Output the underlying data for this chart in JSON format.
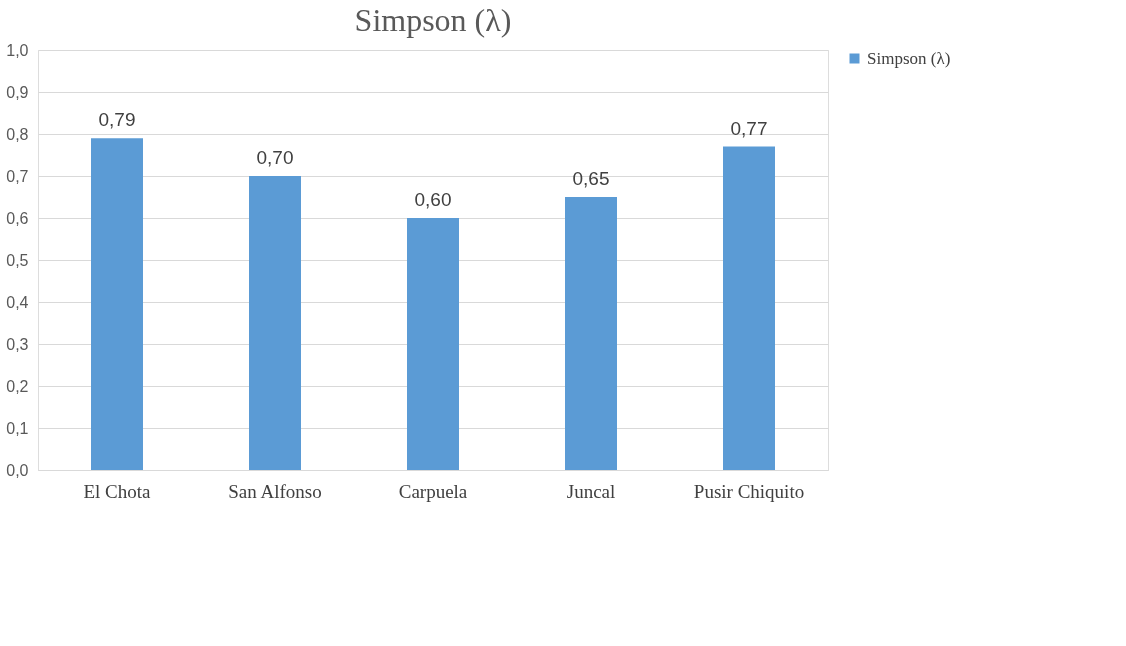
{
  "chart_data": {
    "type": "bar",
    "title": "Simpson (λ)",
    "categories": [
      "El Chota",
      "San Alfonso",
      "Carpuela",
      "Juncal",
      "Pusir Chiquito"
    ],
    "series": [
      {
        "name": "Simpson (λ)",
        "color": "#5b9bd5",
        "values": [
          0.79,
          0.7,
          0.6,
          0.65,
          0.77
        ],
        "value_labels": [
          "0,79",
          "0,70",
          "0,60",
          "0,65",
          "0,77"
        ]
      }
    ],
    "ylim": [
      0,
      1
    ],
    "yticks": [
      {
        "value": 0,
        "label": "0,0"
      },
      {
        "value": 0.1,
        "label": "0,1"
      },
      {
        "value": 0.2,
        "label": "0,2"
      },
      {
        "value": 0.3,
        "label": "0,3"
      },
      {
        "value": 0.4,
        "label": "0,4"
      },
      {
        "value": 0.5,
        "label": "0,5"
      },
      {
        "value": 0.6,
        "label": "0,6"
      },
      {
        "value": 0.7,
        "label": "0,7"
      },
      {
        "value": 0.8,
        "label": "0,8"
      },
      {
        "value": 0.9,
        "label": "0,9"
      },
      {
        "value": 1,
        "label": "1,0"
      }
    ],
    "grid": "y",
    "legend": "right"
  }
}
